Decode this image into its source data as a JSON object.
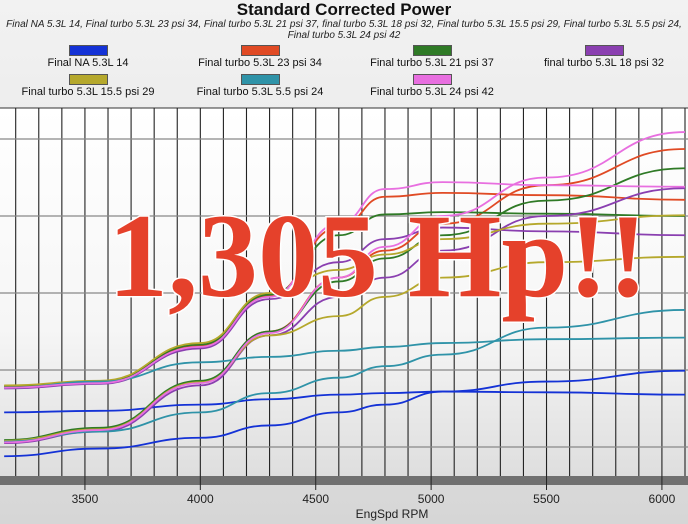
{
  "chart_data": {
    "type": "line",
    "title": "Standard Corrected Power",
    "subtitle": "Final NA 5.3L 14, Final turbo 5.3L 23 psi 34, Final turbo 5.3L 21 psi 37, final turbo 5.3L 18 psi 32, Final turbo 5.3L 15.5 psi 29, Final turbo 5.3L 5.5 psi 24, Final turbo 5.3L 24 psi 42",
    "xlabel": "EngSpd RPM",
    "ylabel": "",
    "xlim": [
      3132,
      6113
    ],
    "ylim": [
      0.6,
      5.4
    ],
    "xticks": [
      3500,
      4000,
      4500,
      5000,
      5500,
      6000
    ],
    "xgrid_step": 100,
    "yticks_grid": [
      1,
      2,
      3,
      4,
      5
    ],
    "grid": true,
    "legend_position": "top",
    "x": [
      3150,
      3565,
      4000,
      4300,
      4600,
      4800,
      5050,
      5500,
      6100
    ],
    "series": [
      {
        "name": "Final NA 5.3L 14",
        "color": "#1432d6",
        "runs": [
          [
            1.45,
            1.47,
            1.55,
            1.62,
            1.68,
            1.7,
            1.72,
            1.71,
            1.68
          ],
          [
            0.88,
            0.98,
            1.12,
            1.28,
            1.45,
            1.55,
            1.72,
            1.85,
            1.99
          ]
        ]
      },
      {
        "name": "Final turbo 5.3L 23 psi 34",
        "color": "#e04a24",
        "runs": [
          [
            1.78,
            1.84,
            2.32,
            2.97,
            3.85,
            4.25,
            4.3,
            4.27,
            4.21
          ],
          [
            1.08,
            1.24,
            1.85,
            2.5,
            3.2,
            3.55,
            3.9,
            4.4,
            4.87
          ]
        ]
      },
      {
        "name": "Final turbo 5.3L 21 psi 37",
        "color": "#2f7a26",
        "runs": [
          [
            1.79,
            1.85,
            2.33,
            2.98,
            3.75,
            4.02,
            4.05,
            4.03,
            4.0
          ],
          [
            1.09,
            1.25,
            1.86,
            2.5,
            3.15,
            3.45,
            3.75,
            4.2,
            4.62
          ]
        ]
      },
      {
        "name": "final turbo 5.3L 18 psi 32",
        "color": "#8a3fb0",
        "runs": [
          [
            1.76,
            1.82,
            2.28,
            2.92,
            3.4,
            3.7,
            3.85,
            3.8,
            3.75
          ],
          [
            1.05,
            1.2,
            1.8,
            2.45,
            2.95,
            3.2,
            3.55,
            4.0,
            4.36
          ]
        ]
      },
      {
        "name": "Final turbo 5.3L 15.5 psi 29",
        "color": "#b5a82c",
        "runs": [
          [
            1.8,
            1.86,
            2.35,
            3.0,
            3.3,
            3.5,
            3.7,
            3.9,
            4.01
          ],
          [
            1.08,
            1.23,
            1.84,
            2.45,
            2.7,
            2.95,
            3.2,
            3.4,
            3.47
          ]
        ]
      },
      {
        "name": "Final turbo 5.3L 5.5 psi 24",
        "color": "#2f93a8",
        "runs": [
          [
            1.77,
            1.85,
            2.1,
            2.17,
            2.25,
            2.3,
            2.35,
            2.4,
            2.42
          ],
          [
            1.07,
            1.2,
            1.45,
            1.7,
            1.9,
            2.05,
            2.2,
            2.55,
            2.78
          ]
        ]
      },
      {
        "name": "Final turbo 5.3L 24 psi 42",
        "color": "#e86fe0",
        "runs": [
          [
            1.77,
            1.83,
            2.3,
            2.95,
            3.9,
            4.35,
            4.44,
            4.4,
            4.38
          ],
          [
            1.06,
            1.22,
            1.83,
            2.48,
            3.2,
            3.6,
            4.0,
            4.5,
            5.09
          ]
        ]
      }
    ],
    "legend": [
      {
        "label": "Final NA 5.3L 14",
        "color": "#1432d6"
      },
      {
        "label": "Final turbo 5.3L 23 psi 34",
        "color": "#e04a24"
      },
      {
        "label": "Final turbo 5.3L 21 psi 37",
        "color": "#2f7a26"
      },
      {
        "label": "final turbo 5.3L 18 psi 32",
        "color": "#8a3fb0"
      },
      {
        "label": "Final turbo 5.3L 15.5 psi 29",
        "color": "#b5a82c"
      },
      {
        "label": "Final turbo 5.3L 5.5 psi 24",
        "color": "#2f93a8"
      },
      {
        "label": "Final turbo 5.3L 24 psi 42",
        "color": "#e86fe0"
      }
    ],
    "annotation": "1,305 Hp!!"
  }
}
